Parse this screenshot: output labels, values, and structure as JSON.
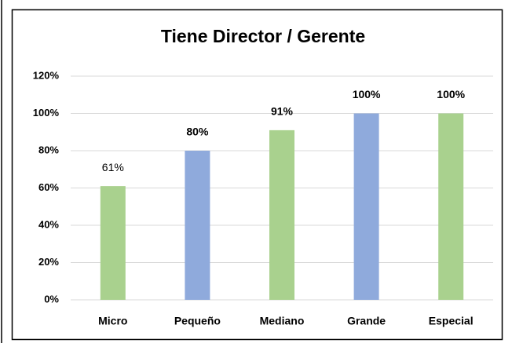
{
  "chart_data": {
    "type": "bar",
    "title": "Tiene Director / Gerente",
    "categories": [
      "Micro",
      "Pequeño",
      "Mediano",
      "Grande",
      "Especial"
    ],
    "values": [
      61,
      80,
      91,
      100,
      100
    ],
    "value_labels": [
      "61%",
      "80%",
      "91%",
      "100%",
      "100%"
    ],
    "value_label_bold": [
      false,
      true,
      true,
      true,
      true
    ],
    "colors": [
      "#a9d18e",
      "#8faadc",
      "#a9d18e",
      "#8faadc",
      "#a9d18e"
    ],
    "ylim": [
      0,
      120
    ],
    "yticks": [
      {
        "value": 0,
        "label": "0%"
      },
      {
        "value": 20,
        "label": "20%"
      },
      {
        "value": 40,
        "label": "40%"
      },
      {
        "value": 60,
        "label": "60%"
      },
      {
        "value": 80,
        "label": "80%"
      },
      {
        "value": 100,
        "label": "100%"
      },
      {
        "value": 120,
        "label": "120%"
      }
    ],
    "grid": true
  }
}
